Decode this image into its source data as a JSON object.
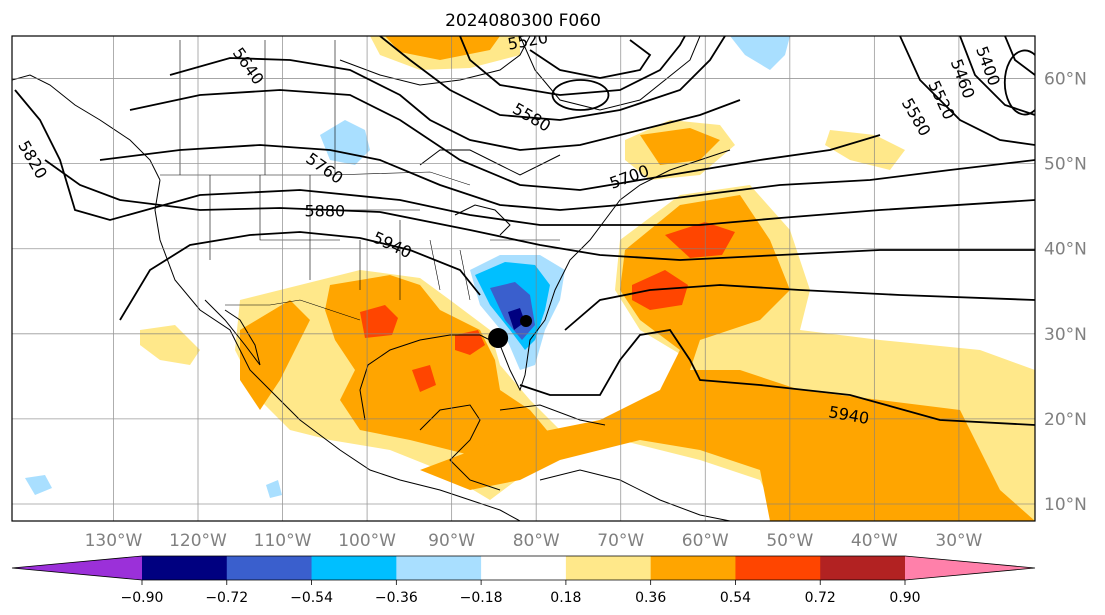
{
  "title": "2024080300 F060",
  "map": {
    "lon_range": [
      -142,
      -21
    ],
    "lat_range": [
      8,
      65
    ],
    "lon_ticks": [
      {
        "value": -130,
        "label": "130°W"
      },
      {
        "value": -120,
        "label": "120°W"
      },
      {
        "value": -110,
        "label": "110°W"
      },
      {
        "value": -100,
        "label": "100°W"
      },
      {
        "value": -90,
        "label": "90°W"
      },
      {
        "value": -80,
        "label": "80°W"
      },
      {
        "value": -70,
        "label": "70°W"
      },
      {
        "value": -60,
        "label": "60°W"
      },
      {
        "value": -50,
        "label": "50°W"
      },
      {
        "value": -40,
        "label": "40°W"
      },
      {
        "value": -30,
        "label": "30°W"
      }
    ],
    "lat_ticks": [
      {
        "value": 10,
        "label": "10°N"
      },
      {
        "value": 20,
        "label": "20°N"
      },
      {
        "value": 30,
        "label": "30°N"
      },
      {
        "value": 40,
        "label": "40°N"
      },
      {
        "value": 50,
        "label": "50°N"
      },
      {
        "value": 60,
        "label": "60°N"
      }
    ],
    "grid": true,
    "contour_labels": [
      {
        "text": "5820",
        "lon": -139.5,
        "lat": 50.5,
        "rot": 60
      },
      {
        "text": "5640",
        "lon": -114,
        "lat": 61.5,
        "rot": 55
      },
      {
        "text": "5760",
        "lon": -105,
        "lat": 49.5,
        "rot": 35
      },
      {
        "text": "5880",
        "lon": -105,
        "lat": 44.5,
        "rot": 0
      },
      {
        "text": "5940",
        "lon": -97,
        "lat": 40.5,
        "rot": 25
      },
      {
        "text": "5580",
        "lon": -80.5,
        "lat": 55.5,
        "rot": 30
      },
      {
        "text": "5700",
        "lon": -69,
        "lat": 48.5,
        "rot": -20
      },
      {
        "text": "5520",
        "lon": -81,
        "lat": 64.5,
        "rot": -10
      },
      {
        "text": "5940",
        "lon": -43,
        "lat": 20.5,
        "rot": 10
      },
      {
        "text": "5400",
        "lon": -26.5,
        "lat": 61.5,
        "rot": 70
      },
      {
        "text": "5460",
        "lon": -29.5,
        "lat": 60,
        "rot": 70
      },
      {
        "text": "5520",
        "lon": -32,
        "lat": 57.5,
        "rot": 65
      },
      {
        "text": "5580",
        "lon": -35,
        "lat": 55.5,
        "rot": 60
      }
    ],
    "markers": [
      {
        "name": "storm-center-marker",
        "lon": -84.5,
        "lat": 29.5
      },
      {
        "name": "minimum-marker",
        "lon": -81.2,
        "lat": 31.5
      }
    ]
  },
  "colorbar": {
    "colors": [
      "#9b30d9",
      "#000080",
      "#3a5fcd",
      "#00bfff",
      "#a9dfff",
      "#ffffff",
      "#ffe88a",
      "#ffa500",
      "#ff4500",
      "#b22222",
      "#ff80aa"
    ],
    "ticks": [
      "−0.90",
      "−0.72",
      "−0.54",
      "−0.36",
      "−0.18",
      "0.18",
      "0.36",
      "0.54",
      "0.72",
      "0.90"
    ]
  }
}
